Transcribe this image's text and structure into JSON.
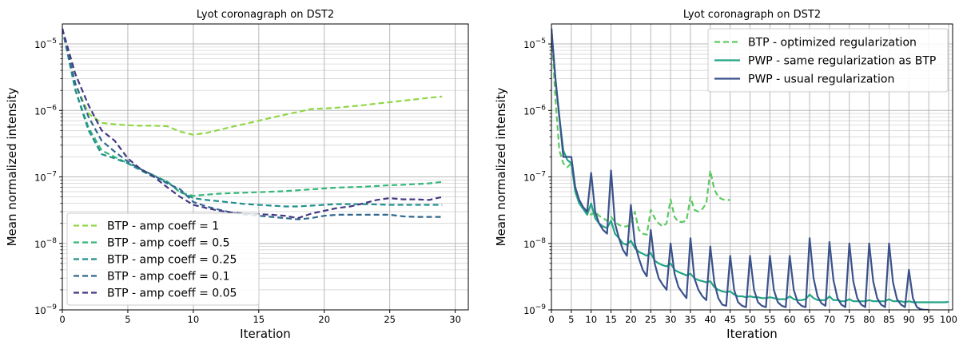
{
  "chart_data": [
    {
      "type": "line",
      "title": "Lyot coronagraph on DST2",
      "xlabel": "Iteration",
      "ylabel": "Mean normalized intensity",
      "yscale": "log",
      "xlim": [
        0,
        31
      ],
      "ylim": [
        1e-09,
        2e-05
      ],
      "xticks": [
        0,
        5,
        10,
        15,
        20,
        25,
        30
      ],
      "yticks": [
        {
          "value": 1e-09,
          "mant": "10",
          "exp": "−9"
        },
        {
          "value": 1e-08,
          "mant": "10",
          "exp": "−8"
        },
        {
          "value": 1e-07,
          "mant": "10",
          "exp": "−7"
        },
        {
          "value": 1e-06,
          "mant": "10",
          "exp": "−6"
        },
        {
          "value": 1e-05,
          "mant": "10",
          "exp": "−5"
        }
      ],
      "grid": true,
      "legend_position": "lower-left",
      "series": [
        {
          "name": "BTP - amp coeff = 1",
          "color": "#8fd744",
          "dash": "7,4",
          "x": [
            0,
            1,
            2,
            3,
            4,
            5,
            6,
            7,
            8,
            9,
            10,
            11,
            12,
            13,
            14,
            15,
            16,
            17,
            18,
            19,
            20,
            21,
            22,
            23,
            24,
            25,
            26,
            27,
            28,
            29
          ],
          "y": [
            1.7e-05,
            2.5e-06,
            9e-07,
            6.5e-07,
            6.2e-07,
            6e-07,
            5.9e-07,
            5.9e-07,
            5.8e-07,
            4.8e-07,
            4.3e-07,
            4.6e-07,
            5.1e-07,
            5.7e-07,
            6.3e-07,
            7e-07,
            7.8e-07,
            8.6e-07,
            9.5e-07,
            1.05e-06,
            1.07e-06,
            1.1e-06,
            1.15e-06,
            1.2e-06,
            1.27e-06,
            1.33e-06,
            1.4e-06,
            1.47e-06,
            1.55e-06,
            1.62e-06
          ]
        },
        {
          "name": "BTP - amp coeff = 0.5",
          "color": "#35b779",
          "dash": "7,4",
          "x": [
            0,
            1,
            2,
            3,
            4,
            5,
            6,
            7,
            8,
            9,
            10,
            11,
            12,
            13,
            14,
            15,
            16,
            17,
            18,
            19,
            20,
            21,
            22,
            23,
            24,
            25,
            26,
            27,
            28,
            29
          ],
          "y": [
            1.7e-05,
            2e-06,
            5.5e-07,
            2.5e-07,
            2e-07,
            1.6e-07,
            1.3e-07,
            1.05e-07,
            8.5e-08,
            5.8e-08,
            5.2e-08,
            5.4e-08,
            5.6e-08,
            5.7e-08,
            5.8e-08,
            5.9e-08,
            6e-08,
            6.1e-08,
            6.3e-08,
            6.5e-08,
            6.7e-08,
            6.9e-08,
            7e-08,
            7.1e-08,
            7.3e-08,
            7.5e-08,
            7.6e-08,
            7.8e-08,
            8e-08,
            8.4e-08
          ]
        },
        {
          "name": "BTP - amp coeff = 0.25",
          "color": "#21908d",
          "dash": "7,4",
          "x": [
            0,
            1,
            2,
            3,
            4,
            5,
            6,
            7,
            8,
            9,
            10,
            11,
            12,
            13,
            14,
            15,
            16,
            17,
            18,
            19,
            20,
            21,
            22,
            23,
            24,
            25,
            26,
            27,
            28,
            29
          ],
          "y": [
            1.7e-05,
            2e-06,
            5e-07,
            2.2e-07,
            1.9e-07,
            1.6e-07,
            1.25e-07,
            1e-07,
            8.5e-08,
            6e-08,
            4.8e-08,
            4.5e-08,
            4.3e-08,
            4.1e-08,
            3.9e-08,
            3.8e-08,
            3.7e-08,
            3.6e-08,
            3.6e-08,
            3.7e-08,
            3.8e-08,
            3.9e-08,
            3.9e-08,
            3.9e-08,
            3.85e-08,
            3.8e-08,
            3.8e-08,
            3.8e-08,
            3.8e-08,
            3.8e-08
          ]
        },
        {
          "name": "BTP - amp coeff = 0.1",
          "color": "#31688e",
          "dash": "7,4",
          "x": [
            0,
            1,
            2,
            3,
            4,
            5,
            6,
            7,
            8,
            9,
            10,
            11,
            12,
            13,
            14,
            15,
            16,
            17,
            18,
            19,
            20,
            21,
            22,
            23,
            24,
            25,
            26,
            27,
            28,
            29
          ],
          "y": [
            1.7e-05,
            2.5e-06,
            8e-07,
            3.5e-07,
            2.4e-07,
            1.7e-07,
            1.3e-07,
            1.05e-07,
            8e-08,
            6.5e-08,
            4.2e-08,
            3.6e-08,
            3.2e-08,
            2.9e-08,
            2.7e-08,
            2.6e-08,
            2.5e-08,
            2.4e-08,
            2.3e-08,
            2.4e-08,
            2.6e-08,
            2.7e-08,
            2.7e-08,
            2.7e-08,
            2.7e-08,
            2.7e-08,
            2.55e-08,
            2.5e-08,
            2.5e-08,
            2.5e-08
          ]
        },
        {
          "name": "BTP - amp coeff = 0.05",
          "color": "#443983",
          "dash": "7,4",
          "x": [
            0,
            1,
            2,
            3,
            4,
            5,
            6,
            7,
            8,
            9,
            10,
            11,
            12,
            13,
            14,
            15,
            16,
            17,
            18,
            19,
            20,
            21,
            22,
            23,
            24,
            25,
            26,
            27,
            28,
            29
          ],
          "y": [
            1.7e-05,
            3.5e-06,
            1.2e-06,
            5e-07,
            3.5e-07,
            1.9e-07,
            1.3e-07,
            1e-07,
            7e-08,
            5e-08,
            3.8e-08,
            3.4e-08,
            3.1e-08,
            2.9e-08,
            2.8e-08,
            2.75e-08,
            2.7e-08,
            2.6e-08,
            2.4e-08,
            2.8e-08,
            3.1e-08,
            3.4e-08,
            3.6e-08,
            4e-08,
            4.5e-08,
            4.8e-08,
            4.6e-08,
            4.6e-08,
            4.5e-08,
            5e-08
          ]
        }
      ]
    },
    {
      "type": "line",
      "title": "Lyot coronagraph on DST2",
      "xlabel": "Iteration",
      "ylabel": "Mean normalized intensity",
      "yscale": "log",
      "xlim": [
        0,
        101
      ],
      "ylim": [
        1e-09,
        2e-05
      ],
      "xticks": [
        0,
        5,
        10,
        15,
        20,
        25,
        30,
        35,
        40,
        45,
        50,
        55,
        60,
        65,
        70,
        75,
        80,
        85,
        90,
        95,
        100
      ],
      "yticks": [
        {
          "value": 1e-09,
          "mant": "10",
          "exp": "−9"
        },
        {
          "value": 1e-08,
          "mant": "10",
          "exp": "−8"
        },
        {
          "value": 1e-07,
          "mant": "10",
          "exp": "−7"
        },
        {
          "value": 1e-06,
          "mant": "10",
          "exp": "−6"
        },
        {
          "value": 1e-05,
          "mant": "10",
          "exp": "−5"
        }
      ],
      "grid": true,
      "legend_position": "top-right",
      "series": [
        {
          "name": "BTP - optimized regularization",
          "color": "#5ec962",
          "dash": "7,4",
          "x": [
            0,
            1,
            2,
            3,
            4,
            5,
            6,
            7,
            8,
            9,
            10,
            11,
            12,
            13,
            14,
            15,
            16,
            17,
            18,
            19,
            20,
            21,
            22,
            23,
            24,
            25,
            26,
            27,
            28,
            29,
            30,
            31,
            32,
            33,
            34,
            35,
            36,
            37,
            38,
            39,
            40,
            41,
            42,
            43,
            44,
            45
          ],
          "y": [
            1.7e-05,
            1.5e-06,
            2.5e-07,
            1.6e-07,
            1.4e-07,
            1.6e-07,
            7e-08,
            4.5e-08,
            3.5e-08,
            3e-08,
            2.7e-08,
            3e-08,
            2.6e-08,
            2.4e-08,
            2.2e-08,
            2.5e-08,
            2.1e-08,
            1.9e-08,
            1.8e-08,
            1.8e-08,
            1.95e-08,
            3e-08,
            1.6e-08,
            1.4e-08,
            1.35e-08,
            3.2e-08,
            2.4e-08,
            2e-08,
            1.8e-08,
            2e-08,
            4.6e-08,
            2.5e-08,
            2.1e-08,
            2.1e-08,
            2.2e-08,
            5e-08,
            3.2e-08,
            3e-08,
            3.3e-08,
            4e-08,
            1.25e-07,
            6.5e-08,
            5e-08,
            4.6e-08,
            4.5e-08,
            4.5e-08
          ]
        },
        {
          "name": "PWP - same regularization as BTP",
          "color": "#21a585",
          "dash": "",
          "x": [
            0,
            1,
            2,
            3,
            4,
            5,
            6,
            7,
            8,
            9,
            10,
            11,
            12,
            13,
            14,
            15,
            16,
            17,
            18,
            19,
            20,
            21,
            22,
            23,
            24,
            25,
            26,
            27,
            28,
            29,
            30,
            31,
            32,
            33,
            34,
            35,
            36,
            37,
            38,
            39,
            40,
            41,
            42,
            43,
            44,
            45,
            46,
            47,
            48,
            49,
            50,
            51,
            52,
            53,
            54,
            55,
            56,
            57,
            58,
            59,
            60,
            61,
            62,
            63,
            64,
            65,
            66,
            67,
            68,
            69,
            70,
            71,
            72,
            73,
            74,
            75,
            76,
            77,
            78,
            79,
            80,
            81,
            82,
            83,
            84,
            85,
            86,
            87,
            88,
            89,
            90,
            91,
            92,
            93,
            94,
            95,
            96,
            97,
            98,
            99,
            100
          ],
          "y": [
            1.7e-05,
            3e-06,
            8e-07,
            2.5e-07,
            1.8e-07,
            1.6e-07,
            6e-08,
            4e-08,
            3.3e-08,
            2.7e-08,
            4e-08,
            2.4e-08,
            2e-08,
            1.8e-08,
            1.7e-08,
            2.2e-08,
            1.4e-08,
            1.2e-08,
            1e-08,
            9.5e-09,
            1.1e-08,
            8.5e-09,
            7.5e-09,
            7e-09,
            6.5e-09,
            7.2e-09,
            5.5e-09,
            5e-09,
            4.7e-09,
            4.5e-09,
            5e-09,
            4e-09,
            3.7e-09,
            3.5e-09,
            3.3e-09,
            3.5e-09,
            3e-09,
            2.8e-09,
            2.7e-09,
            2.6e-09,
            2.7e-09,
            2.2e-09,
            2e-09,
            1.9e-09,
            1.85e-09,
            1.9e-09,
            1.7e-09,
            1.6e-09,
            1.6e-09,
            1.55e-09,
            1.6e-09,
            1.55e-09,
            1.55e-09,
            1.5e-09,
            1.5e-09,
            1.55e-09,
            1.5e-09,
            1.45e-09,
            1.45e-09,
            1.45e-09,
            1.6e-09,
            1.45e-09,
            1.4e-09,
            1.4e-09,
            1.45e-09,
            1.7e-09,
            1.5e-09,
            1.4e-09,
            1.4e-09,
            1.4e-09,
            1.6e-09,
            1.4e-09,
            1.4e-09,
            1.35e-09,
            1.35e-09,
            1.45e-09,
            1.35e-09,
            1.35e-09,
            1.35e-09,
            1.35e-09,
            1.4e-09,
            1.35e-09,
            1.35e-09,
            1.35e-09,
            1.35e-09,
            1.45e-09,
            1.35e-09,
            1.35e-09,
            1.35e-09,
            1.3e-09,
            1.35e-09,
            1.3e-09,
            1.3e-09,
            1.3e-09,
            1.3e-09,
            1.3e-09,
            1.3e-09,
            1.3e-09,
            1.3e-09,
            1.3e-09,
            1.32e-09
          ]
        },
        {
          "name": "PWP - usual regularization",
          "color": "#3b528b",
          "dash": "",
          "x": [
            0,
            1,
            2,
            3,
            4,
            5,
            6,
            7,
            8,
            9,
            10,
            11,
            12,
            13,
            14,
            15,
            16,
            17,
            18,
            19,
            20,
            21,
            22,
            23,
            24,
            25,
            26,
            27,
            28,
            29,
            30,
            31,
            32,
            33,
            34,
            35,
            36,
            37,
            38,
            39,
            40,
            41,
            42,
            43,
            44,
            45,
            46,
            47,
            48,
            49,
            50,
            51,
            52,
            53,
            54,
            55,
            56,
            57,
            58,
            59,
            60,
            61,
            62,
            63,
            64,
            65,
            66,
            67,
            68,
            69,
            70,
            71,
            72,
            73,
            74,
            75,
            76,
            77,
            78,
            79,
            80,
            81,
            82,
            83,
            84,
            85,
            86,
            87,
            88,
            89,
            90,
            91,
            92,
            93,
            94,
            95
          ],
          "y": [
            1.7e-05,
            3e-06,
            8e-07,
            2e-07,
            2e-07,
            2e-07,
            7e-08,
            4.5e-08,
            3.5e-08,
            3e-08,
            1.15e-07,
            3e-08,
            2e-08,
            1.6e-08,
            1.4e-08,
            1.25e-07,
            2e-08,
            1.2e-08,
            8e-09,
            6.5e-09,
            3.8e-08,
            1e-08,
            6e-09,
            4e-09,
            3.2e-09,
            1.6e-08,
            5e-09,
            3e-09,
            2.4e-09,
            2e-09,
            1e-08,
            3.5e-09,
            2.2e-09,
            1.8e-09,
            1.5e-09,
            1.2e-08,
            3e-09,
            2e-09,
            1.6e-09,
            1.4e-09,
            9e-09,
            2.6e-09,
            1.5e-09,
            1.2e-09,
            1.15e-09,
            6.5e-09,
            2e-09,
            1.3e-09,
            1.15e-09,
            1.1e-09,
            6.5e-09,
            2e-09,
            1.3e-09,
            1.15e-09,
            1.1e-09,
            6.5e-09,
            2e-09,
            1.3e-09,
            1.15e-09,
            1.1e-09,
            6.5e-09,
            2e-09,
            1.3e-09,
            1.15e-09,
            1.1e-09,
            1.2e-08,
            3e-09,
            1.6e-09,
            1.25e-09,
            1.15e-09,
            1.05e-08,
            2.8e-09,
            1.5e-09,
            1.2e-09,
            1.1e-09,
            1e-08,
            2.7e-09,
            1.5e-09,
            1.2e-09,
            1.1e-09,
            1e-08,
            2.7e-09,
            1.5e-09,
            1.2e-09,
            1.1e-09,
            1e-08,
            2.6e-09,
            1.45e-09,
            1.2e-09,
            1.1e-09,
            4e-09,
            1.5e-09,
            1.1e-09,
            1.02e-09,
            1e-09,
            1e-09
          ]
        }
      ]
    }
  ]
}
